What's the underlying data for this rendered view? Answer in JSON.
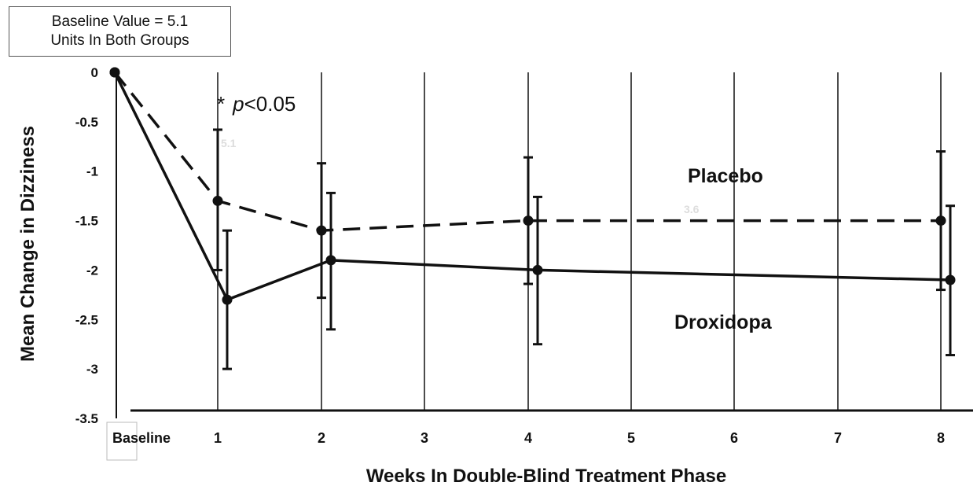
{
  "baseline_note": {
    "line1": "Baseline Value = 5.1",
    "line2": "Units In Both Groups"
  },
  "significance_note": {
    "star": "*",
    "p_letter": "p",
    "rest": "<0.05"
  },
  "faint_labels": [
    "5.1",
    "3.6"
  ],
  "chart_data": {
    "type": "line",
    "xlabel": "Weeks In Double-Blind Treatment Phase",
    "ylabel": "Mean Change in Dizziness",
    "x_categories": [
      "Baseline",
      "1",
      "2",
      "3",
      "4",
      "5",
      "6",
      "7",
      "8"
    ],
    "ylim": [
      -3.5,
      0
    ],
    "y_ticks": [
      "0",
      "-0.5",
      "-1",
      "-1.5",
      "-2",
      "-2.5",
      "-3",
      "-3.5"
    ],
    "y_tick_values": [
      0,
      -0.5,
      -1,
      -1.5,
      -2,
      -2.5,
      -3,
      -3.5
    ],
    "grid": "vertical",
    "series": [
      {
        "name": "Placebo",
        "style": "dashed",
        "color": "#111111",
        "points": [
          {
            "x": "Baseline",
            "y": 0
          },
          {
            "x": "1",
            "y": -1.3,
            "err_low": -2.0,
            "err_high": -0.58
          },
          {
            "x": "2",
            "y": -1.6,
            "err_low": -2.28,
            "err_high": -0.92
          },
          {
            "x": "4",
            "y": -1.5,
            "err_low": -2.14,
            "err_high": -0.86
          },
          {
            "x": "8",
            "y": -1.5,
            "err_low": -2.2,
            "err_high": -0.8
          }
        ]
      },
      {
        "name": "Droxidopa",
        "style": "solid",
        "color": "#111111",
        "points": [
          {
            "x": "Baseline",
            "y": 0
          },
          {
            "x": "1",
            "y": -2.3,
            "err_low": -3.0,
            "err_high": -1.6
          },
          {
            "x": "2",
            "y": -1.9,
            "err_low": -2.6,
            "err_high": -1.22
          },
          {
            "x": "4",
            "y": -2.0,
            "err_low": -2.75,
            "err_high": -1.26
          },
          {
            "x": "8",
            "y": -2.1,
            "err_low": -2.86,
            "err_high": -1.35
          }
        ]
      }
    ]
  }
}
